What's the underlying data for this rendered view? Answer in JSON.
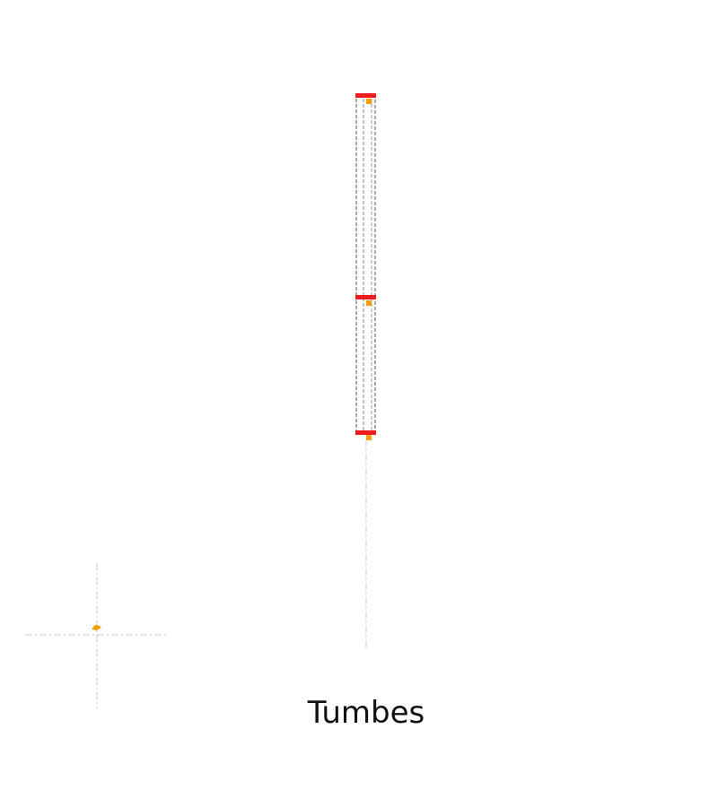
{
  "title": "Tumbes",
  "colors": {
    "background": "#ffffff",
    "outline": "#555555",
    "inner_line": "#999999",
    "guide_line": "#d4d4d4",
    "cap": "#ee1c1c",
    "marker": "#f5a000",
    "text": "#111111"
  },
  "icons": {
    "cap": "red-cap",
    "marker": "orange-marker"
  }
}
